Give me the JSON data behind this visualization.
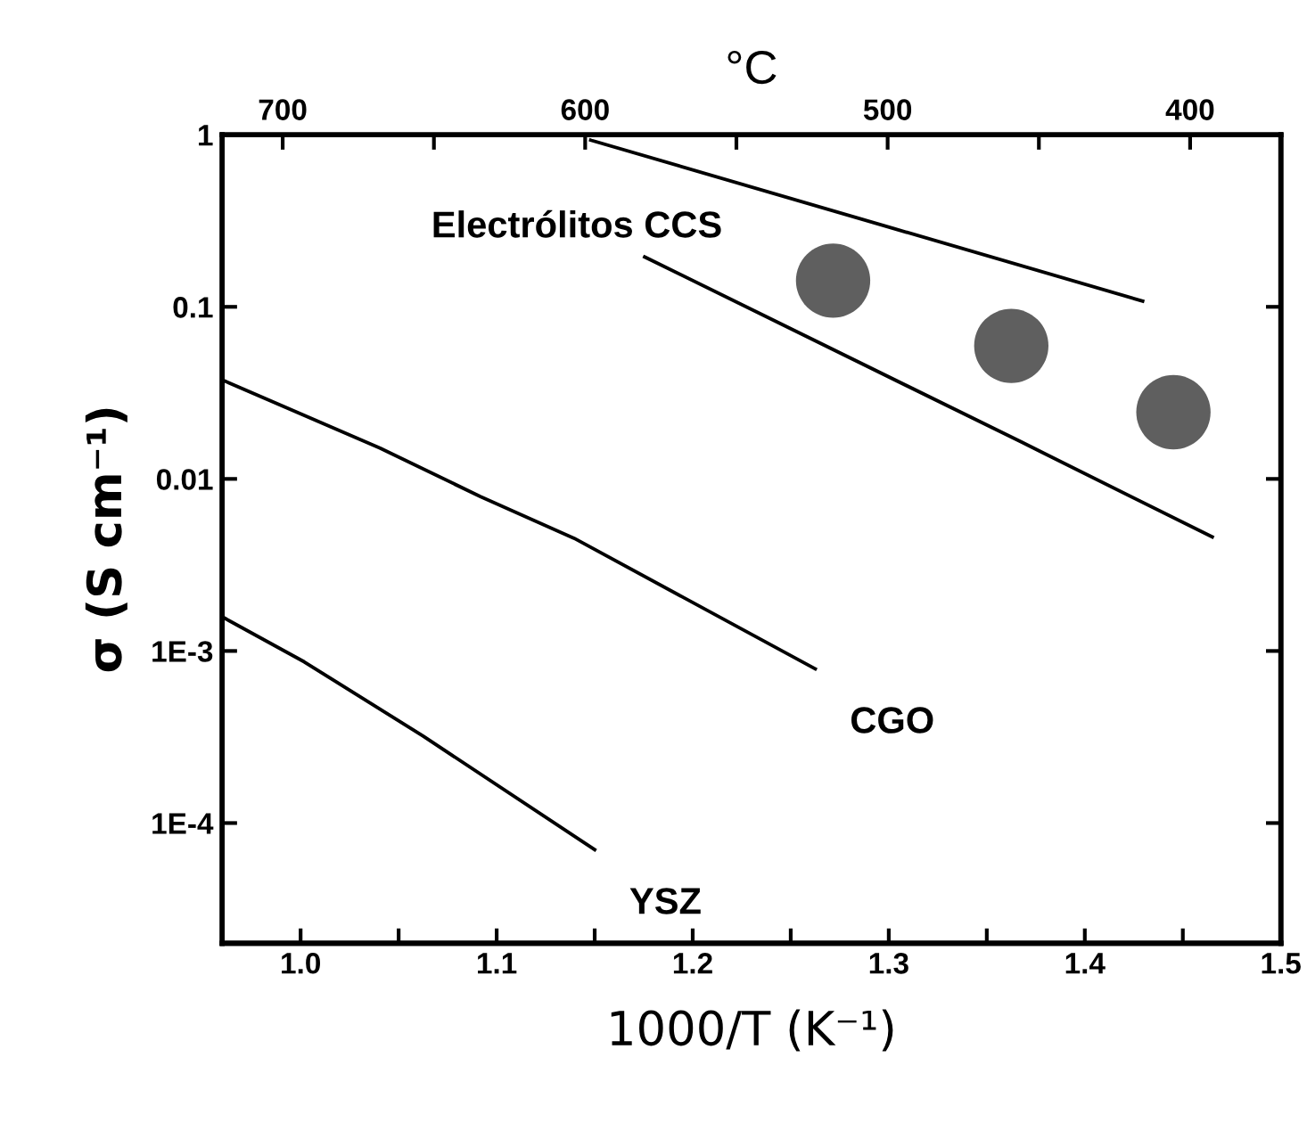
{
  "chart_data": {
    "type": "line",
    "xlabel": "1000/T (K⁻¹)",
    "ylabel": "σ (S cm⁻¹)",
    "x2label": "°C",
    "log": "y",
    "xlim": [
      0.96,
      1.5
    ],
    "ylim": [
      2e-05,
      1
    ],
    "xticks": [
      {
        "value": 1.0,
        "label": "1.0"
      },
      {
        "value": 1.05,
        "label": null
      },
      1.1,
      {
        "value": 1.15,
        "label": null
      },
      1.2,
      {
        "value": 1.25,
        "label": null
      },
      1.3,
      {
        "value": 1.35,
        "label": null
      },
      1.4,
      {
        "value": 1.45,
        "label": null
      },
      1.5
    ],
    "x2lim": [
      720,
      370
    ],
    "x2ticks": [
      700,
      {
        "value": 650,
        "label": null
      },
      600,
      {
        "value": 550,
        "label": null
      },
      500,
      {
        "value": 450,
        "label": null
      },
      400
    ],
    "yticks": [
      {
        "value": 0.0001,
        "label": "1E-4"
      },
      {
        "value": 0.001,
        "label": "1E-3"
      },
      0.01,
      0.1,
      1
    ],
    "grid": false,
    "legend": false,
    "marker": "none",
    "line_style": "solid",
    "series": [
      {
        "name": "YSZ",
        "color": "#000000",
        "x": [
          0.96,
          1.0018,
          1.0625,
          1.15
        ],
        "values": [
          0.00158,
          0.000865,
          0.00032,
          7e-05
        ]
      },
      {
        "name": "CGO",
        "color": "#000000",
        "x": [
          0.96,
          1.0405,
          1.0918,
          1.1395,
          1.2625
        ],
        "values": [
          0.0376,
          0.0151,
          0.00789,
          0.00452,
          0.000787
        ]
      },
      {
        "color": "#000000",
        "x": [
          1.148,
          1.4295
        ],
        "values": [
          0.93,
          0.108
        ]
      },
      {
        "color": "#000000",
        "x": [
          1.1755,
          1.368,
          1.465
        ],
        "values": [
          0.195,
          0.0163,
          0.0046
        ]
      },
      {
        "type": "scatter",
        "marker": "circle",
        "color": "#5f5f5f",
        "x": [
          1.2716,
          1.3625,
          1.4452
        ],
        "values": [
          0.142,
          0.0593,
          0.0244
        ]
      }
    ],
    "annotations": [
      "Electrólitos CCS"
    ]
  }
}
